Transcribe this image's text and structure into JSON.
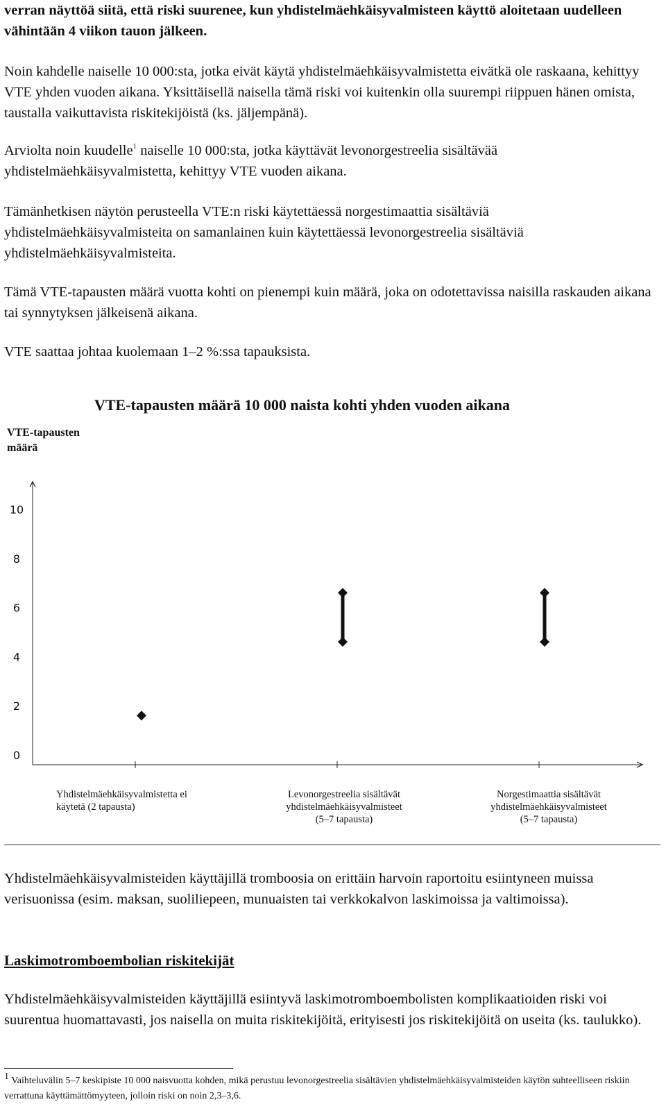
{
  "intro": "verran näyttöä siitä, että riski suurenee, kun yhdistelmäehkäisyvalmisteen käyttö aloitetaan uudelleen vähintään 4 viikon tauon jälkeen.",
  "para1": "Noin kahdelle naiselle 10 000:sta, jotka eivät käytä yhdistelmäehkäisyvalmistetta eivätkä ole raskaana, kehittyy VTE yhden vuoden aikana. Yksittäisellä naisella tämä riski voi kuitenkin olla suurempi riippuen hänen omista, taustalla vaikuttavista riskitekijöistä (ks. jäljempänä).",
  "para2": {
    "before": "Arviolta noin kuudelle",
    "sup": "1",
    "after": " naiselle 10 000:sta, jotka käyttävät levonorgestreelia sisältävää yhdistelmäehkäisyvalmistetta, kehittyy VTE vuoden aikana."
  },
  "para3": "Tämänhetkisen näytön perusteella VTE:n riski käytettäessä norgestimaattia sisältäviä yhdistelmäehkäisyvalmisteita on samanlainen kuin käytettäessä levonorgestreelia sisältäviä yhdistelmäehkäisyvalmisteita.",
  "para4": "Tämä VTE-tapausten määrä vuotta kohti on pienempi kuin määrä, joka on odotettavissa naisilla raskauden aikana tai synnytyksen jälkeisenä aikana.",
  "para5": "VTE saattaa johtaa kuolemaan 1–2 %:ssa tapauksista.",
  "chart_data": {
    "type": "scatter",
    "title": "VTE-tapausten määrä 10 000 naista kohti yhden vuoden aikana",
    "ylabel": "VTE-tapausten määrä",
    "categories": [
      "Yhdistelmäehkäisyvalmistetta ei käytetä (2 tapausta)",
      "Levonorgestreelia sisältävät yhdistelmäehkäisyvalmisteet (5–7 tapausta)",
      "Norgestimaattia sisältävät yhdistelmäehkäisyvalmisteet (5–7 tapausta)"
    ],
    "category_lines": [
      [
        "Yhdistelmäehkäisyvalmistetta ei",
        "käytetä (2 tapausta)"
      ],
      [
        "Levonorgestreelia sisältävät",
        "yhdistelmäehkäisyvalmisteet",
        "(5–7 tapausta)"
      ],
      [
        "Norgestimaattia sisältävät",
        "yhdistelmäehkäisyvalmisteet",
        "(5–7 tapausta)"
      ]
    ],
    "ranges": [
      {
        "low": 2,
        "high": 2
      },
      {
        "low": 5,
        "high": 7
      },
      {
        "low": 5,
        "high": 7
      }
    ],
    "yticks": [
      0,
      2,
      4,
      6,
      8,
      10
    ],
    "ylim": [
      0,
      10
    ],
    "marker_color": "#111111"
  },
  "para6": "Yhdistelmäehkäisyvalmisteiden käyttäjillä tromboosia on erittäin harvoin raportoitu esiintyneen muissa verisuonissa (esim. maksan, suoliliepeen, munuaisten tai verkkokalvon laskimoissa ja valtimoissa).",
  "heading_risk": "Laskimotromboembolian riskitekijät",
  "para7": "Yhdistelmäehkäisyvalmisteiden käyttäjillä esiintyvä laskimotromboembolisten komplikaatioiden riski voi suurentua huomattavasti, jos naisella on muita riskitekijöitä, erityisesti jos riskitekijöitä on useita (ks. taulukko).",
  "footnote": {
    "mark": "1",
    "text": "Vaihteluvälin 5–7 keskipiste 10 000 naisvuotta kohden, mikä perustuu levonorgestreelia sisältävien yhdistelmäehkäisyvalmisteiden käytön suhteelliseen riskiin verrattuna käyttämättömyyteen, jolloin riski on noin 2,3–3,6."
  }
}
